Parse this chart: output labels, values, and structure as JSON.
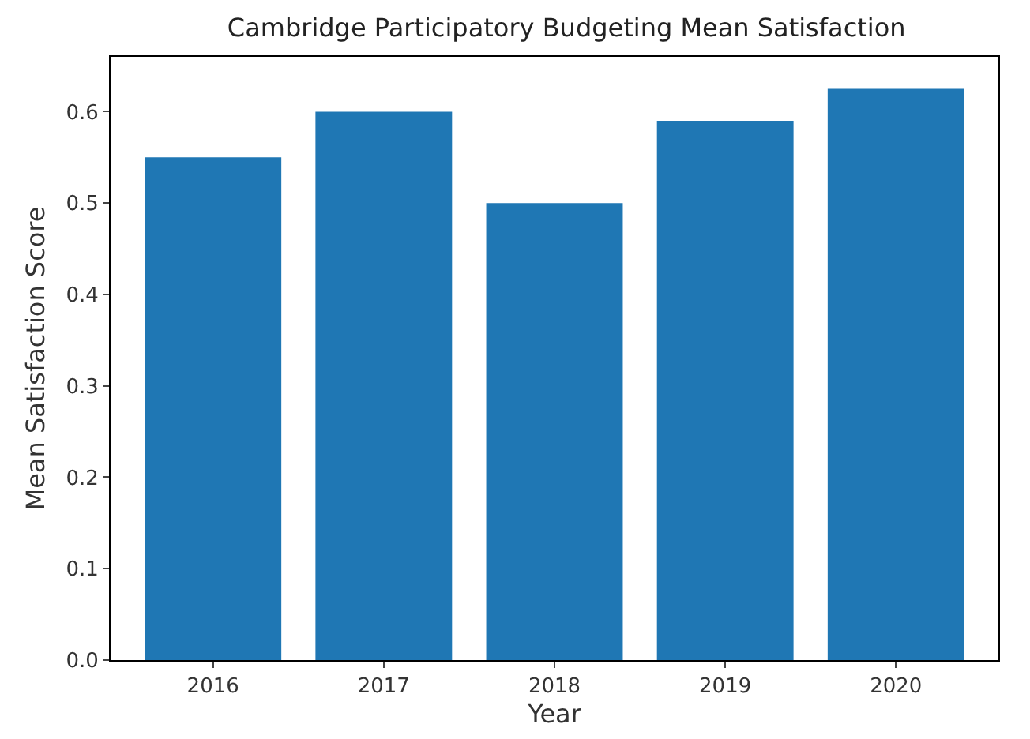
{
  "chart_data": {
    "type": "bar",
    "title": "Cambridge Participatory Budgeting Mean Satisfaction",
    "xlabel": "Year",
    "ylabel": "Mean Satisfaction Score",
    "categories": [
      "2016",
      "2017",
      "2018",
      "2019",
      "2020"
    ],
    "values": [
      0.55,
      0.6,
      0.5,
      0.59,
      0.625
    ],
    "color": "#1f77b4",
    "ylim": [
      0,
      0.66
    ],
    "yticks": [
      {
        "value": 0,
        "label": "0.0"
      },
      0.1,
      0.2,
      0.3,
      0.4,
      0.5,
      0.6
    ],
    "grid": false,
    "legend": false
  }
}
